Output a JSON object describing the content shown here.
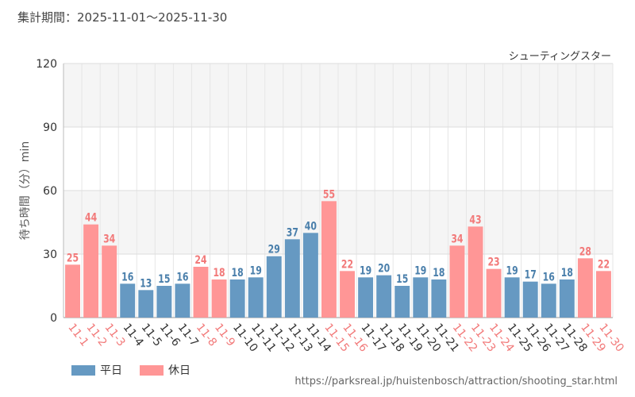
{
  "header": {
    "period_text": "集計期間：2025-11-01～2025-11-30"
  },
  "footer": {
    "source_url": "https://parksreal.jp/huistenbosch/attraction/shooting_star.html"
  },
  "colors": {
    "weekday": "#6699c2",
    "holiday": "#ff9696",
    "weekday_label": "#4a7fab",
    "holiday_label": "#f27a7a"
  },
  "chart_data": {
    "type": "bar",
    "title": "シューティングスター",
    "xlabel": "",
    "ylabel": "待ち時間（分）min",
    "ylim": [
      0,
      120
    ],
    "yticks": [
      0,
      30,
      60,
      90,
      120
    ],
    "categories": [
      "11-1",
      "11-2",
      "11-3",
      "11-4",
      "11-5",
      "11-6",
      "11-7",
      "11-8",
      "11-9",
      "11-10",
      "11-11",
      "11-12",
      "11-13",
      "11-14",
      "11-15",
      "11-16",
      "11-17",
      "11-18",
      "11-19",
      "11-20",
      "11-21",
      "11-22",
      "11-23",
      "11-24",
      "11-25",
      "11-26",
      "11-27",
      "11-28",
      "11-29",
      "11-30"
    ],
    "values": [
      25,
      44,
      34,
      16,
      13,
      15,
      16,
      24,
      18,
      18,
      19,
      29,
      37,
      40,
      55,
      22,
      19,
      20,
      15,
      19,
      18,
      34,
      43,
      23,
      19,
      17,
      16,
      18,
      28,
      22
    ],
    "day_type": [
      "holiday",
      "holiday",
      "holiday",
      "weekday",
      "weekday",
      "weekday",
      "weekday",
      "holiday",
      "holiday",
      "weekday",
      "weekday",
      "weekday",
      "weekday",
      "weekday",
      "holiday",
      "holiday",
      "weekday",
      "weekday",
      "weekday",
      "weekday",
      "weekday",
      "holiday",
      "holiday",
      "holiday",
      "weekday",
      "weekday",
      "weekday",
      "weekday",
      "holiday",
      "holiday"
    ],
    "legend": [
      {
        "key": "weekday",
        "label": "平日"
      },
      {
        "key": "holiday",
        "label": "休日"
      }
    ],
    "legend_position": "bottom-left",
    "grid": true
  }
}
